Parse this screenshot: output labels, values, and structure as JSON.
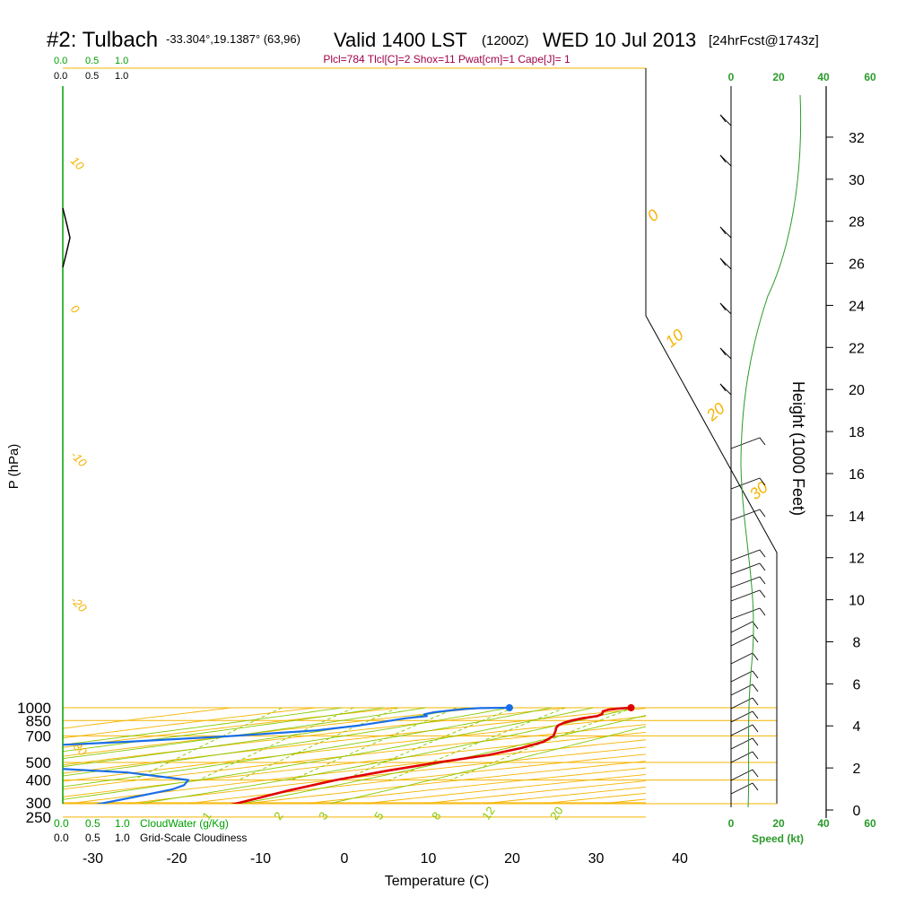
{
  "header": {
    "station": "#2: Tulbach",
    "coords": "-33.304°,19.1387° (63,96)",
    "valid": "Valid 1400 LST",
    "zulu": "(1200Z)",
    "date": "WED 10 Jul 2013",
    "forecast": "[24hrFcst@1743z]",
    "params": "Plcl=784 Tlcl[C]=2 Shox=11 Pwat[cm]=1 Cape[J]= 1"
  },
  "colors": {
    "isobar": "#f5b400",
    "dry_adiabat": "#f5b400",
    "moist_adiabat": "#88c800",
    "mixing_ratio": "#88c800",
    "temperature": "#e00000",
    "dewpoint": "#1a6ee8",
    "cloud_scale": "#00a000",
    "params_text": "#a0004a",
    "wind_speed": "#2a9a2a"
  },
  "labels": {
    "cloud_top_green": [
      "0.0",
      "0.5",
      "1.0"
    ],
    "cloud_top_black": [
      "0.0",
      "0.5",
      "1.0"
    ],
    "cloud_bottom_green": [
      "0.0",
      "0.5",
      "1.0",
      "CloudWater (g/Kg)"
    ],
    "cloud_bottom_black": [
      "0.0",
      "0.5",
      "1.0",
      "Grid-Scale Cloudiness"
    ],
    "speed_top": [
      "0",
      "20",
      "40",
      "60"
    ],
    "speed_bottom": [
      "0",
      "20",
      "40",
      "60"
    ],
    "speed_axis": "Speed (kt)",
    "height_axis": "Height (1000 Feet)",
    "x_axis": "Temperature (C)",
    "y_axis": "P (hPa)"
  },
  "chart_data": {
    "type": "line",
    "title": "Skew-T log-P sounding",
    "xlabel": "Temperature (C)",
    "ylabel": "P (hPa)",
    "pressure_ticks": [
      250,
      300,
      400,
      500,
      700,
      850,
      1000
    ],
    "temperature_ticks": [
      -30,
      -20,
      -10,
      0,
      10,
      20,
      30,
      40
    ],
    "height_ticks": [
      0,
      2,
      4,
      6,
      8,
      10,
      12,
      14,
      16,
      18,
      20,
      22,
      24,
      26,
      28,
      30,
      32
    ],
    "dry_adiabat_labels": [
      "10",
      "0",
      "-10",
      "-20",
      "-30"
    ],
    "moist_adiabat_labels": [
      "0",
      "10",
      "20",
      "30"
    ],
    "mixing_ratio_labels": [
      "1",
      "2",
      "3",
      "5",
      "8",
      "12",
      "20"
    ],
    "series": [
      {
        "name": "Temperature",
        "points": [
          {
            "p": 1000,
            "t": 24.5
          },
          {
            "p": 990,
            "t": 23.0
          },
          {
            "p": 975,
            "t": 22.0
          },
          {
            "p": 955,
            "t": 21.5
          },
          {
            "p": 940,
            "t": 21.6
          },
          {
            "p": 925,
            "t": 21.7
          },
          {
            "p": 900,
            "t": 21.3
          },
          {
            "p": 875,
            "t": 19.8
          },
          {
            "p": 850,
            "t": 18.7
          },
          {
            "p": 825,
            "t": 18.0
          },
          {
            "p": 800,
            "t": 17.6
          },
          {
            "p": 775,
            "t": 17.6
          },
          {
            "p": 750,
            "t": 17.8
          },
          {
            "p": 700,
            "t": 18.1
          },
          {
            "p": 650,
            "t": 17.5
          },
          {
            "p": 600,
            "t": 15.5
          },
          {
            "p": 550,
            "t": 12.3
          },
          {
            "p": 500,
            "t": 7.0
          },
          {
            "p": 450,
            "t": 1.8
          },
          {
            "p": 400,
            "t": -3.4
          },
          {
            "p": 350,
            "t": -8.0
          },
          {
            "p": 300,
            "t": -12.6
          },
          {
            "p": 270,
            "t": -16.0
          }
        ]
      },
      {
        "name": "Dewpoint",
        "points": [
          {
            "p": 1000,
            "t": 10.0
          },
          {
            "p": 995,
            "t": 6.5
          },
          {
            "p": 985,
            "t": 5.0
          },
          {
            "p": 970,
            "t": 3.5
          },
          {
            "p": 945,
            "t": 1.5
          },
          {
            "p": 920,
            "t": 0.5
          },
          {
            "p": 900,
            "t": 1.0
          },
          {
            "p": 875,
            "t": -1.3
          },
          {
            "p": 850,
            "t": -2.8
          },
          {
            "p": 800,
            "t": -6.0
          },
          {
            "p": 750,
            "t": -10.8
          },
          {
            "p": 700,
            "t": -20.0
          },
          {
            "p": 650,
            "t": -32.0
          },
          {
            "p": 620,
            "t": -41.0
          },
          {
            "p": 600,
            "t": -47.0
          },
          {
            "p": 550,
            "t": -53.0
          },
          {
            "p": 500,
            "t": -49.5
          },
          {
            "p": 465,
            "t": -39.0
          },
          {
            "p": 440,
            "t": -29.0
          },
          {
            "p": 400,
            "t": -21.0
          },
          {
            "p": 375,
            "t": -21.0
          },
          {
            "p": 355,
            "t": -22.0
          },
          {
            "p": 320,
            "t": -26.0
          },
          {
            "p": 290,
            "t": -30.0
          },
          {
            "p": 270,
            "t": -33.0
          }
        ]
      }
    ],
    "surface_dewpoint": 10.0,
    "surface_temperature": 24.5
  }
}
